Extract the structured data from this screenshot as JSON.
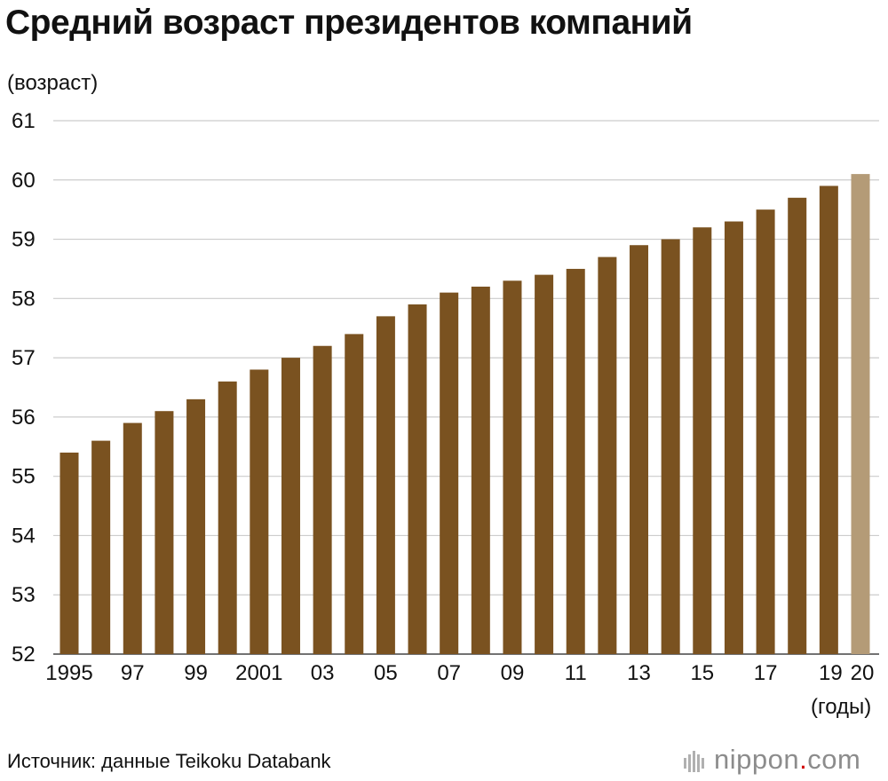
{
  "title": "Средний возраст президентов компаний",
  "footer": {
    "source": "Источник: данные Teikoku Databank",
    "logo": {
      "name": "nippon",
      "dot": ".",
      "suffix": "com"
    }
  },
  "colors": {
    "bar": "#7a5220",
    "bar_highlight": "#b49b77",
    "grid": "#cccccc"
  },
  "chart_data": {
    "type": "bar",
    "title": "Средний возраст президентов компаний",
    "ylabel": "(возраст)",
    "xlabel": "(годы)",
    "ylim": [
      52,
      61
    ],
    "yticks": [
      52,
      53,
      54,
      55,
      56,
      57,
      58,
      59,
      60,
      61
    ],
    "grid": true,
    "categories": [
      "1995",
      "1996",
      "1997",
      "1998",
      "1999",
      "2000",
      "2001",
      "2002",
      "2003",
      "2004",
      "2005",
      "2006",
      "2007",
      "2008",
      "2009",
      "2010",
      "2011",
      "2012",
      "2013",
      "2014",
      "2015",
      "2016",
      "2017",
      "2018",
      "2019",
      "2020"
    ],
    "tick_labels": [
      "1995",
      "",
      "97",
      "",
      "99",
      "",
      "2001",
      "",
      "03",
      "",
      "05",
      "",
      "07",
      "",
      "09",
      "",
      "11",
      "",
      "13",
      "",
      "15",
      "",
      "17",
      "",
      "19",
      "20"
    ],
    "values": [
      55.4,
      55.6,
      55.9,
      56.1,
      56.3,
      56.6,
      56.8,
      57.0,
      57.2,
      57.4,
      57.7,
      57.9,
      58.1,
      58.2,
      58.3,
      58.4,
      58.5,
      58.7,
      58.9,
      59.0,
      59.2,
      59.3,
      59.5,
      59.7,
      59.9,
      60.1
    ],
    "highlight": [
      "2020"
    ]
  }
}
